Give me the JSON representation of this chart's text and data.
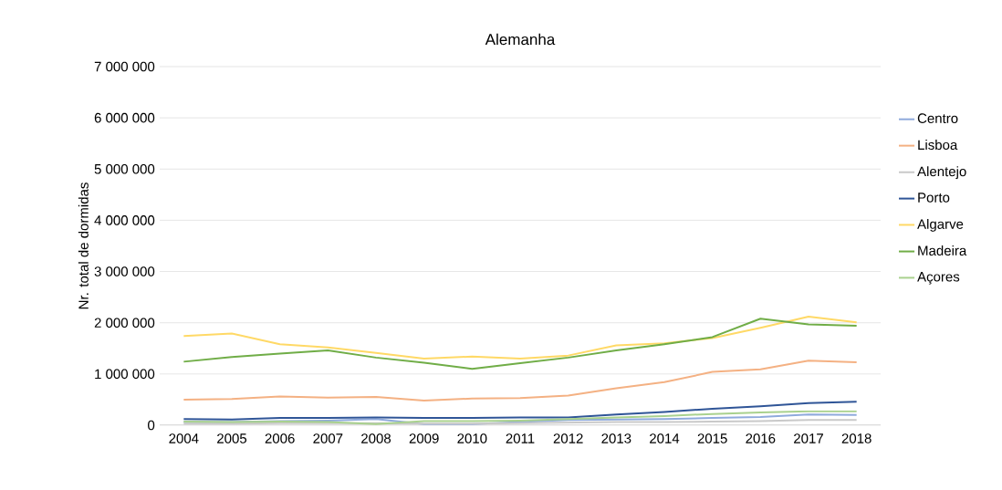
{
  "chart_data": {
    "type": "line",
    "title": "Alemanha",
    "ylabel": "Nr. total de dormidas",
    "categories": [
      "2004",
      "2005",
      "2006",
      "2007",
      "2008",
      "2009",
      "2010",
      "2011",
      "2012",
      "2013",
      "2014",
      "2015",
      "2016",
      "2017",
      "2018"
    ],
    "series": [
      {
        "name": "Centro",
        "color": "#8faadc",
        "values": [
          60000,
          60000,
          80000,
          90000,
          120000,
          20000,
          20000,
          60000,
          100000,
          110000,
          120000,
          140000,
          160000,
          210000,
          200000
        ]
      },
      {
        "name": "Lisboa",
        "color": "#f4b183",
        "values": [
          500000,
          510000,
          560000,
          540000,
          550000,
          480000,
          520000,
          530000,
          580000,
          720000,
          840000,
          1040000,
          1090000,
          1260000,
          1230000
        ]
      },
      {
        "name": "Alentejo",
        "color": "#c9c9c9",
        "values": [
          30000,
          30000,
          40000,
          40000,
          40000,
          30000,
          30000,
          40000,
          50000,
          60000,
          60000,
          70000,
          80000,
          100000,
          100000
        ]
      },
      {
        "name": "Porto",
        "color": "#2f5597",
        "values": [
          120000,
          110000,
          140000,
          140000,
          150000,
          140000,
          140000,
          150000,
          150000,
          210000,
          260000,
          320000,
          370000,
          430000,
          460000
        ]
      },
      {
        "name": "Algarve",
        "color": "#ffd966",
        "values": [
          1740000,
          1790000,
          1580000,
          1520000,
          1410000,
          1300000,
          1340000,
          1300000,
          1360000,
          1560000,
          1600000,
          1700000,
          1900000,
          2120000,
          2010000
        ]
      },
      {
        "name": "Madeira",
        "color": "#70ad47",
        "values": [
          1240000,
          1330000,
          1400000,
          1460000,
          1320000,
          1220000,
          1100000,
          1210000,
          1320000,
          1460000,
          1580000,
          1720000,
          2080000,
          1970000,
          1940000
        ]
      },
      {
        "name": "Açores",
        "color": "#a9d18e",
        "values": [
          70000,
          60000,
          70000,
          60000,
          20000,
          80000,
          80000,
          90000,
          120000,
          150000,
          180000,
          220000,
          250000,
          270000,
          270000
        ]
      }
    ],
    "ylim": [
      0,
      7000000
    ],
    "yticks": [
      0,
      {
        "value": 1000000,
        "label": "1 000 000"
      },
      {
        "value": 2000000,
        "label": "2 000 000"
      },
      {
        "value": 3000000,
        "label": "3 000 000"
      },
      {
        "value": 4000000,
        "label": "4 000 000"
      },
      {
        "value": 5000000,
        "label": "5 000 000"
      },
      {
        "value": 6000000,
        "label": "6 000 000"
      },
      {
        "value": 7000000,
        "label": "7 000 000"
      }
    ],
    "grid": "y",
    "legend": "right",
    "marker": "none",
    "line_style": "solid"
  }
}
